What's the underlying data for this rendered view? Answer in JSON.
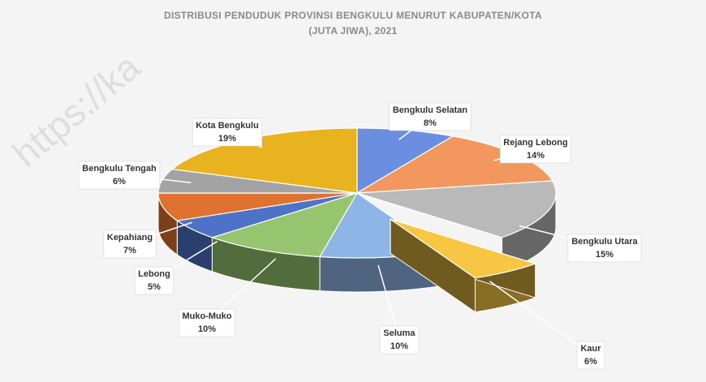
{
  "chart_data": {
    "type": "pie",
    "title": "DISTRIBUSI PENDUDUK PROVINSI BENGKULU MENURUT KABUPATEN/KOTA (JUTA JIWA), 2021",
    "watermark": "https://ka",
    "categories": [
      "Bengkulu Selatan",
      "Rejang Lebong",
      "Bengkulu Utara",
      "Kaur",
      "Seluma",
      "Muko-Muko",
      "Lebong",
      "Kepahiang",
      "Bengkulu Tengah",
      "Kota Bengkulu"
    ],
    "values": [
      8,
      14,
      15,
      6,
      10,
      10,
      5,
      7,
      6,
      19
    ],
    "value_labels": [
      "8%",
      "14%",
      "15%",
      "6%",
      "10%",
      "10%",
      "5%",
      "7%",
      "6%",
      "19%"
    ],
    "colors": [
      "#6b8ee0",
      "#f2985f",
      "#b9b9b9",
      "#f7c744",
      "#8db6e6",
      "#97c46e",
      "#4d72c8",
      "#e0722f",
      "#a3a3a3",
      "#e9b31f"
    ],
    "exploded": "Kaur"
  }
}
